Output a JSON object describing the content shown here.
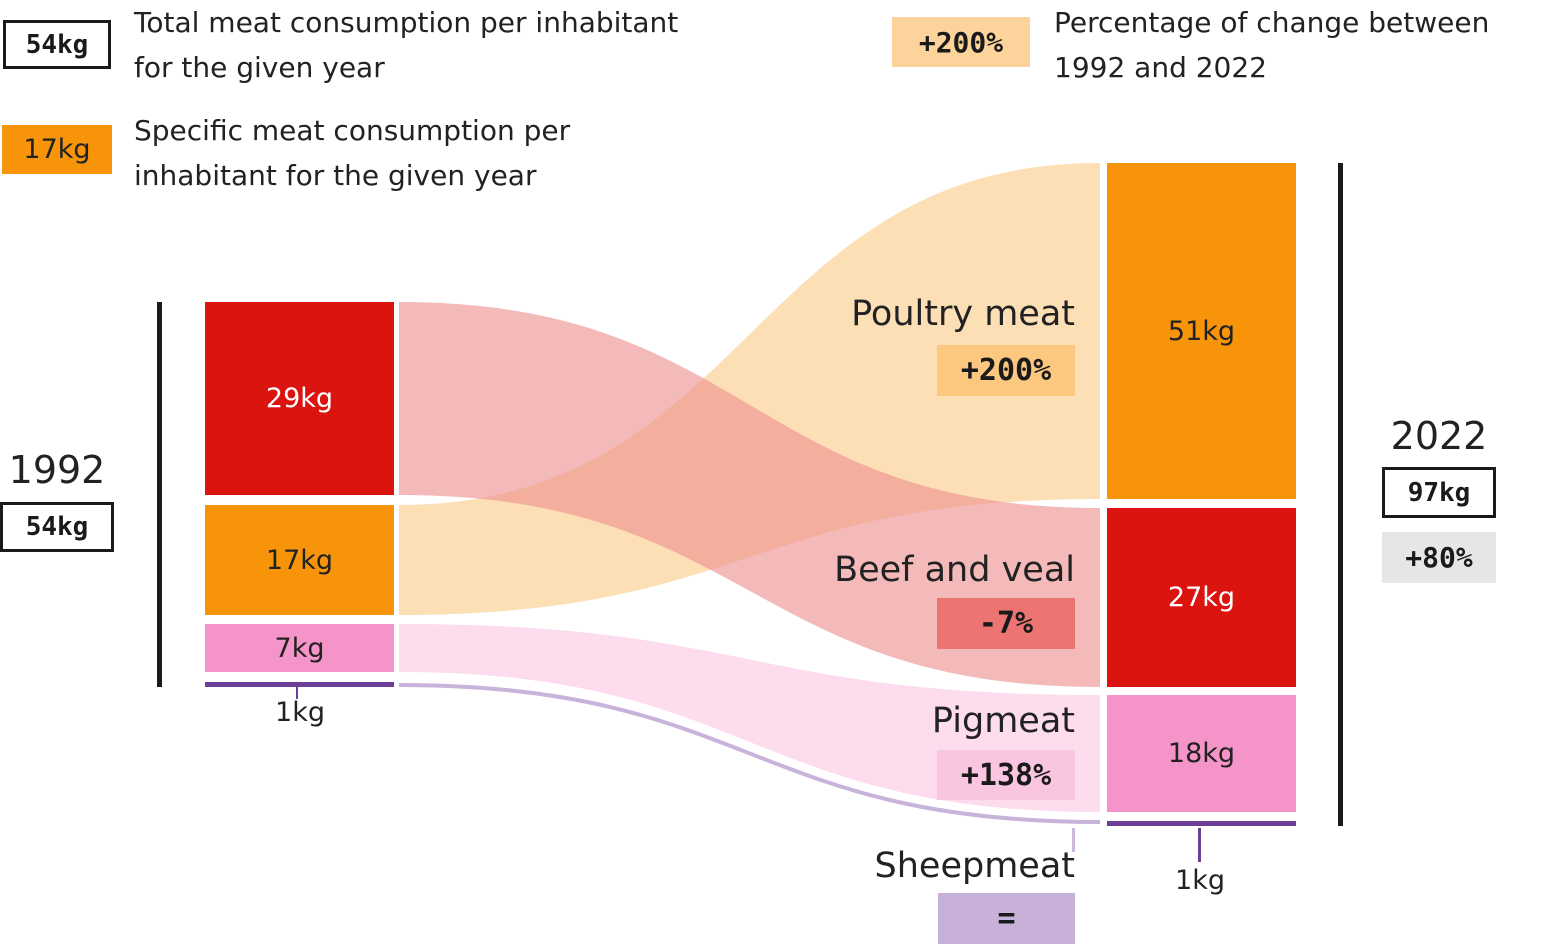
{
  "legend": {
    "total_box": "54kg",
    "total_text_line1": "Total meat consumption per inhabitant",
    "total_text_line2": "for the given year",
    "specific_box": "17kg",
    "specific_text_line1": "Specific meat consumption per",
    "specific_text_line2": "inhabitant for the given year",
    "change_box": "+200%",
    "change_text_line1": "Percentage of change between",
    "change_text_line2": "1992 and 2022"
  },
  "left": {
    "year": "1992",
    "total": "54kg",
    "values": {
      "beef": "29kg",
      "poultry": "17kg",
      "pig": "7kg",
      "sheep": "1kg"
    }
  },
  "right": {
    "year": "2022",
    "total": "97kg",
    "total_change": "+80%",
    "values": {
      "poultry": "51kg",
      "beef": "27kg",
      "pig": "18kg",
      "sheep": "1kg"
    }
  },
  "categories": {
    "poultry": {
      "name": "Poultry meat",
      "change": "+200%"
    },
    "beef": {
      "name": "Beef and veal",
      "change": "-7%"
    },
    "pig": {
      "name": "Pigmeat",
      "change": "+138%"
    },
    "sheep": {
      "name": "Sheepmeat",
      "change": "="
    }
  },
  "colors": {
    "beef": "#dc1410",
    "poultry": "#f7940a",
    "pig": "#f594c8",
    "sheep": "#6b3f96",
    "poultry_flow": "#fbd9a8",
    "beef_flow": "#f2a0a0",
    "pig_flow": "#fcdced",
    "sheep_flow": "#cdb9dc"
  },
  "chart_data": {
    "type": "sankey",
    "nodes_1992": [
      {
        "name": "Beef and veal",
        "value": 29
      },
      {
        "name": "Poultry meat",
        "value": 17
      },
      {
        "name": "Pigmeat",
        "value": 7
      },
      {
        "name": "Sheepmeat",
        "value": 1
      }
    ],
    "nodes_2022": [
      {
        "name": "Poultry meat",
        "value": 51
      },
      {
        "name": "Beef and veal",
        "value": 27
      },
      {
        "name": "Pigmeat",
        "value": 18
      },
      {
        "name": "Sheepmeat",
        "value": 1
      }
    ],
    "totals": {
      "1992": 54,
      "2022": 97
    },
    "change_percent": {
      "Poultry meat": 200,
      "Beef and veal": -7,
      "Pigmeat": 138,
      "Sheepmeat": 0,
      "Total": 80
    }
  }
}
